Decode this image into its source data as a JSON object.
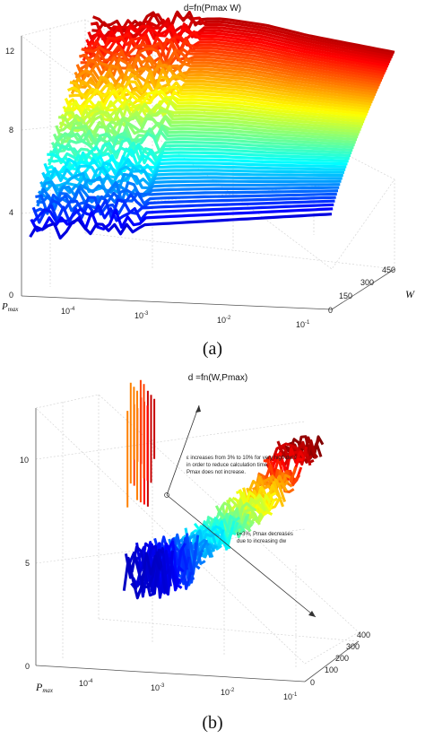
{
  "chart_data": [
    {
      "type": "surface",
      "title": "d=fn(Pmax W)",
      "xlabel": "P_max",
      "ylabel": "W",
      "zlabel": "",
      "x_ticks": [
        "10^-4",
        "10^-3",
        "10^-2",
        "10^-1"
      ],
      "y_ticks": [
        "0",
        "150",
        "300",
        "450"
      ],
      "z_ticks": [
        "0",
        "4",
        "8",
        "12"
      ],
      "xlim": [
        "10^-4.6",
        "10^-1"
      ],
      "ylim": [
        0,
        450
      ],
      "zlim": [
        0,
        12
      ],
      "x_scale": "log",
      "grid": true,
      "colormap": "jet",
      "caption": "(a)",
      "surface": {
        "pmax_log10": [
          -4.5,
          -4.0,
          -3.5,
          -3.0,
          -2.5,
          -2.0,
          -1.5,
          -1.0
        ],
        "w_values": [
          0,
          50,
          100,
          150,
          200,
          250,
          300,
          350,
          400,
          450
        ],
        "d_at_w0": [
          3.0,
          3.2,
          3.4,
          3.6,
          3.8,
          4.0,
          4.2,
          4.4
        ],
        "d_at_w450": [
          10.6,
          10.9,
          11.1,
          11.2,
          11.0,
          10.6,
          10.3,
          10.0
        ]
      }
    },
    {
      "type": "surface",
      "title": "d =fn(W,Pmax)",
      "xlabel": "P_max",
      "ylabel": "",
      "zlabel": "",
      "x_ticks": [
        "10^-4",
        "10^-3",
        "10^-2",
        "10^-1"
      ],
      "y_ticks": [
        "0",
        "100",
        "200",
        "300",
        "400"
      ],
      "z_ticks": [
        "0",
        "5",
        "10"
      ],
      "xlim": [
        "10^-4.6",
        "10^-1"
      ],
      "ylim": [
        0,
        400
      ],
      "zlim": [
        0,
        12
      ],
      "x_scale": "log",
      "grid": true,
      "colormap": "jet",
      "caption": "(b)",
      "ridge": {
        "w_values": [
          0,
          40,
          80,
          120,
          160,
          200,
          240,
          280,
          320,
          360,
          400
        ],
        "d_values": [
          11.0,
          10.2,
          8.6,
          7.6,
          6.8,
          6.0,
          5.2,
          4.4,
          3.6,
          3.0,
          2.6
        ]
      },
      "annotations": [
        "ε increases from 3% to 10% for very high dw's in order to reduce calculation time. Pmax does not increase.",
        "ε=3%, Pmax decreases due to increasing dw"
      ]
    }
  ]
}
